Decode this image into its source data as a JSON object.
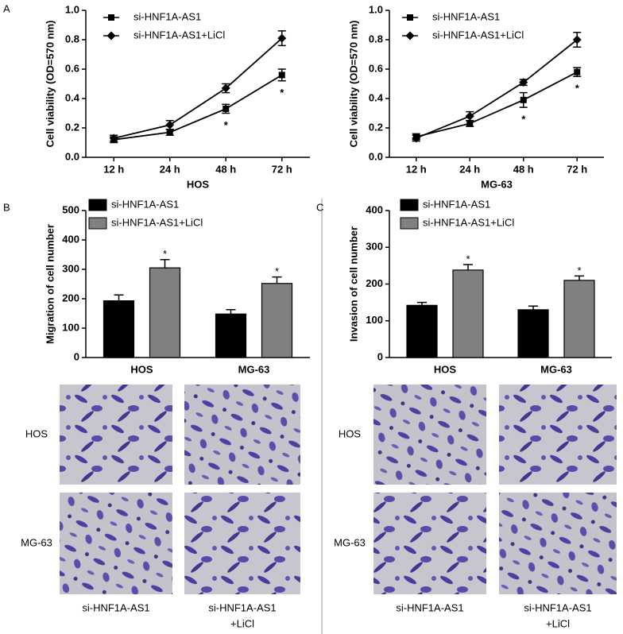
{
  "panel_labels": [
    "A",
    "B",
    "C"
  ],
  "chart_data": [
    {
      "type": "line",
      "xlabel": "HOS",
      "ylabel": "Cell viability (OD=570 nm)",
      "categories": [
        "12 h",
        "24 h",
        "48 h",
        "72 h"
      ],
      "ylim": [
        0,
        1
      ],
      "yticks": [
        {
          "value": 0,
          "label": "0.0"
        },
        0.2,
        0.4,
        0.6,
        0.8,
        {
          "value": 1,
          "label": "1.0"
        }
      ],
      "series": [
        {
          "name": "si-HNF1A-AS1",
          "color": "#000000",
          "marker": "square",
          "values": [
            0.12,
            0.17,
            0.33,
            0.56
          ],
          "errors": [
            0.02,
            0.02,
            0.03,
            0.04
          ],
          "significance": [
            null,
            null,
            "*",
            "*"
          ]
        },
        {
          "name": "si-HNF1A-AS1+LiCl",
          "color": "#000000",
          "marker": "diamond",
          "values": [
            0.13,
            0.22,
            0.47,
            0.81
          ],
          "errors": [
            0.02,
            0.03,
            0.03,
            0.05
          ]
        }
      ]
    },
    {
      "type": "line",
      "xlabel": "MG-63",
      "ylabel": "Cell viability (OD=570 nm)",
      "categories": [
        "12 h",
        "24 h",
        "48 h",
        "72 h"
      ],
      "ylim": [
        0,
        1
      ],
      "yticks": [
        {
          "value": 0,
          "label": "0.0"
        },
        0.2,
        0.4,
        0.6,
        0.8,
        {
          "value": 1,
          "label": "1.0"
        }
      ],
      "series": [
        {
          "name": "si-HNF1A-AS1",
          "color": "#000000",
          "marker": "square",
          "values": [
            0.14,
            0.23,
            0.39,
            0.58
          ],
          "errors": [
            0.02,
            0.02,
            0.05,
            0.03
          ],
          "significance": [
            null,
            null,
            "*",
            "*"
          ]
        },
        {
          "name": "si-HNF1A-AS1+LiCl",
          "color": "#000000",
          "marker": "diamond",
          "values": [
            0.13,
            0.28,
            0.51,
            0.8
          ],
          "errors": [
            0.02,
            0.03,
            0.02,
            0.05
          ]
        }
      ]
    },
    {
      "type": "bar",
      "ylabel": "Migration of cell number",
      "categories": [
        "HOS",
        "MG-63"
      ],
      "ylim": [
        0,
        500
      ],
      "yticks": [
        0,
        100,
        200,
        300,
        400,
        500
      ],
      "series": [
        {
          "name": "si-HNF1A-AS1",
          "color": "#000000",
          "values": [
            193,
            148
          ],
          "errors": [
            20,
            15
          ]
        },
        {
          "name": "si-HNF1A-AS1+LiCl",
          "color": "#808080",
          "values": [
            305,
            252
          ],
          "errors": [
            28,
            22
          ],
          "significance": [
            "*",
            "*"
          ]
        }
      ]
    },
    {
      "type": "bar",
      "ylabel": "Invasion of cell number",
      "categories": [
        "HOS",
        "MG-63"
      ],
      "ylim": [
        0,
        400
      ],
      "yticks": [
        0,
        100,
        200,
        300,
        400
      ],
      "series": [
        {
          "name": "si-HNF1A-AS1",
          "color": "#000000",
          "values": [
            142,
            130
          ],
          "errors": [
            8,
            10
          ]
        },
        {
          "name": "si-HNF1A-AS1+LiCl",
          "color": "#808080",
          "values": [
            238,
            210
          ],
          "errors": [
            15,
            12
          ],
          "significance": [
            "*",
            "*"
          ]
        }
      ]
    }
  ],
  "micrographs": [
    {
      "row_labels": [
        "HOS",
        "MG-63"
      ],
      "column_labels": [
        [
          "si-HNF1A-AS1"
        ],
        [
          "si-HNF1A-AS1",
          "+LiCl"
        ]
      ]
    },
    {
      "row_labels": [
        "HOS",
        "MG-63"
      ],
      "column_labels": [
        [
          "si-HNF1A-AS1"
        ],
        [
          "si-HNF1A-AS1",
          "+LiCl"
        ]
      ]
    }
  ]
}
